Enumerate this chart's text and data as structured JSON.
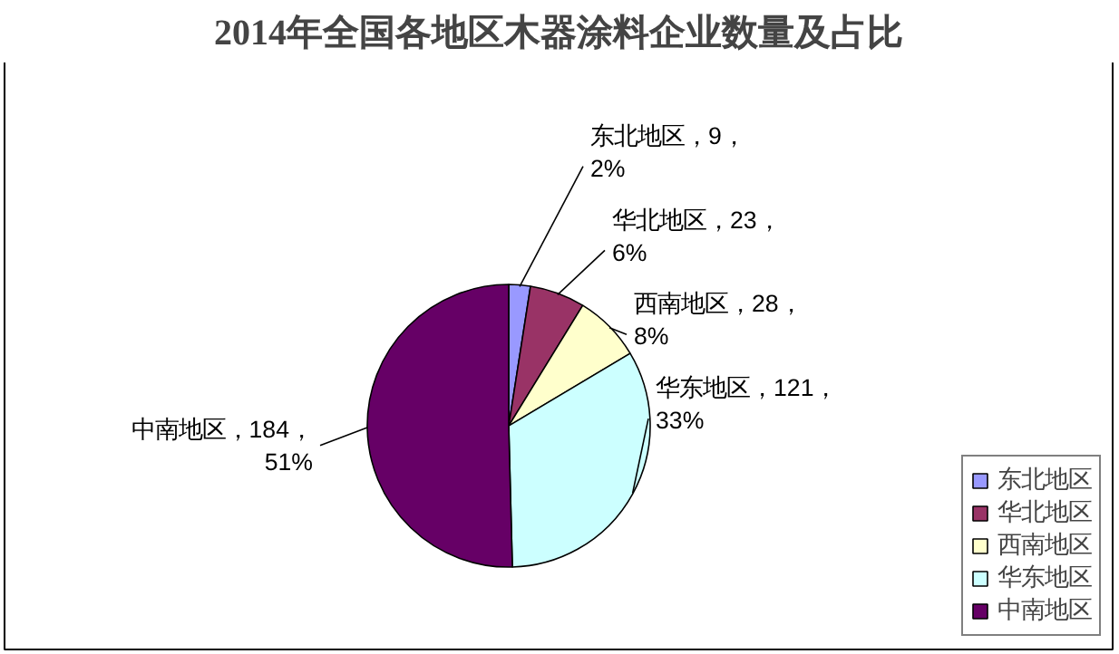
{
  "chart_data": {
    "type": "pie",
    "title": "2014年全国各地区木器涂料企业数量及占比",
    "categories": [
      "东北地区",
      "华北地区",
      "西南地区",
      "华东地区",
      "中南地区"
    ],
    "values": [
      9,
      23,
      28,
      121,
      184
    ],
    "colors": [
      "#9999ff",
      "#993366",
      "#ffffcc",
      "#ccffff",
      "#660066"
    ],
    "value_labels": [
      "东北地区，9，2%",
      "华北地区，23，6%",
      "西南地区，28，8%",
      "华东地区，121，33%",
      "中南地区，184，51%"
    ],
    "legend": "right"
  }
}
